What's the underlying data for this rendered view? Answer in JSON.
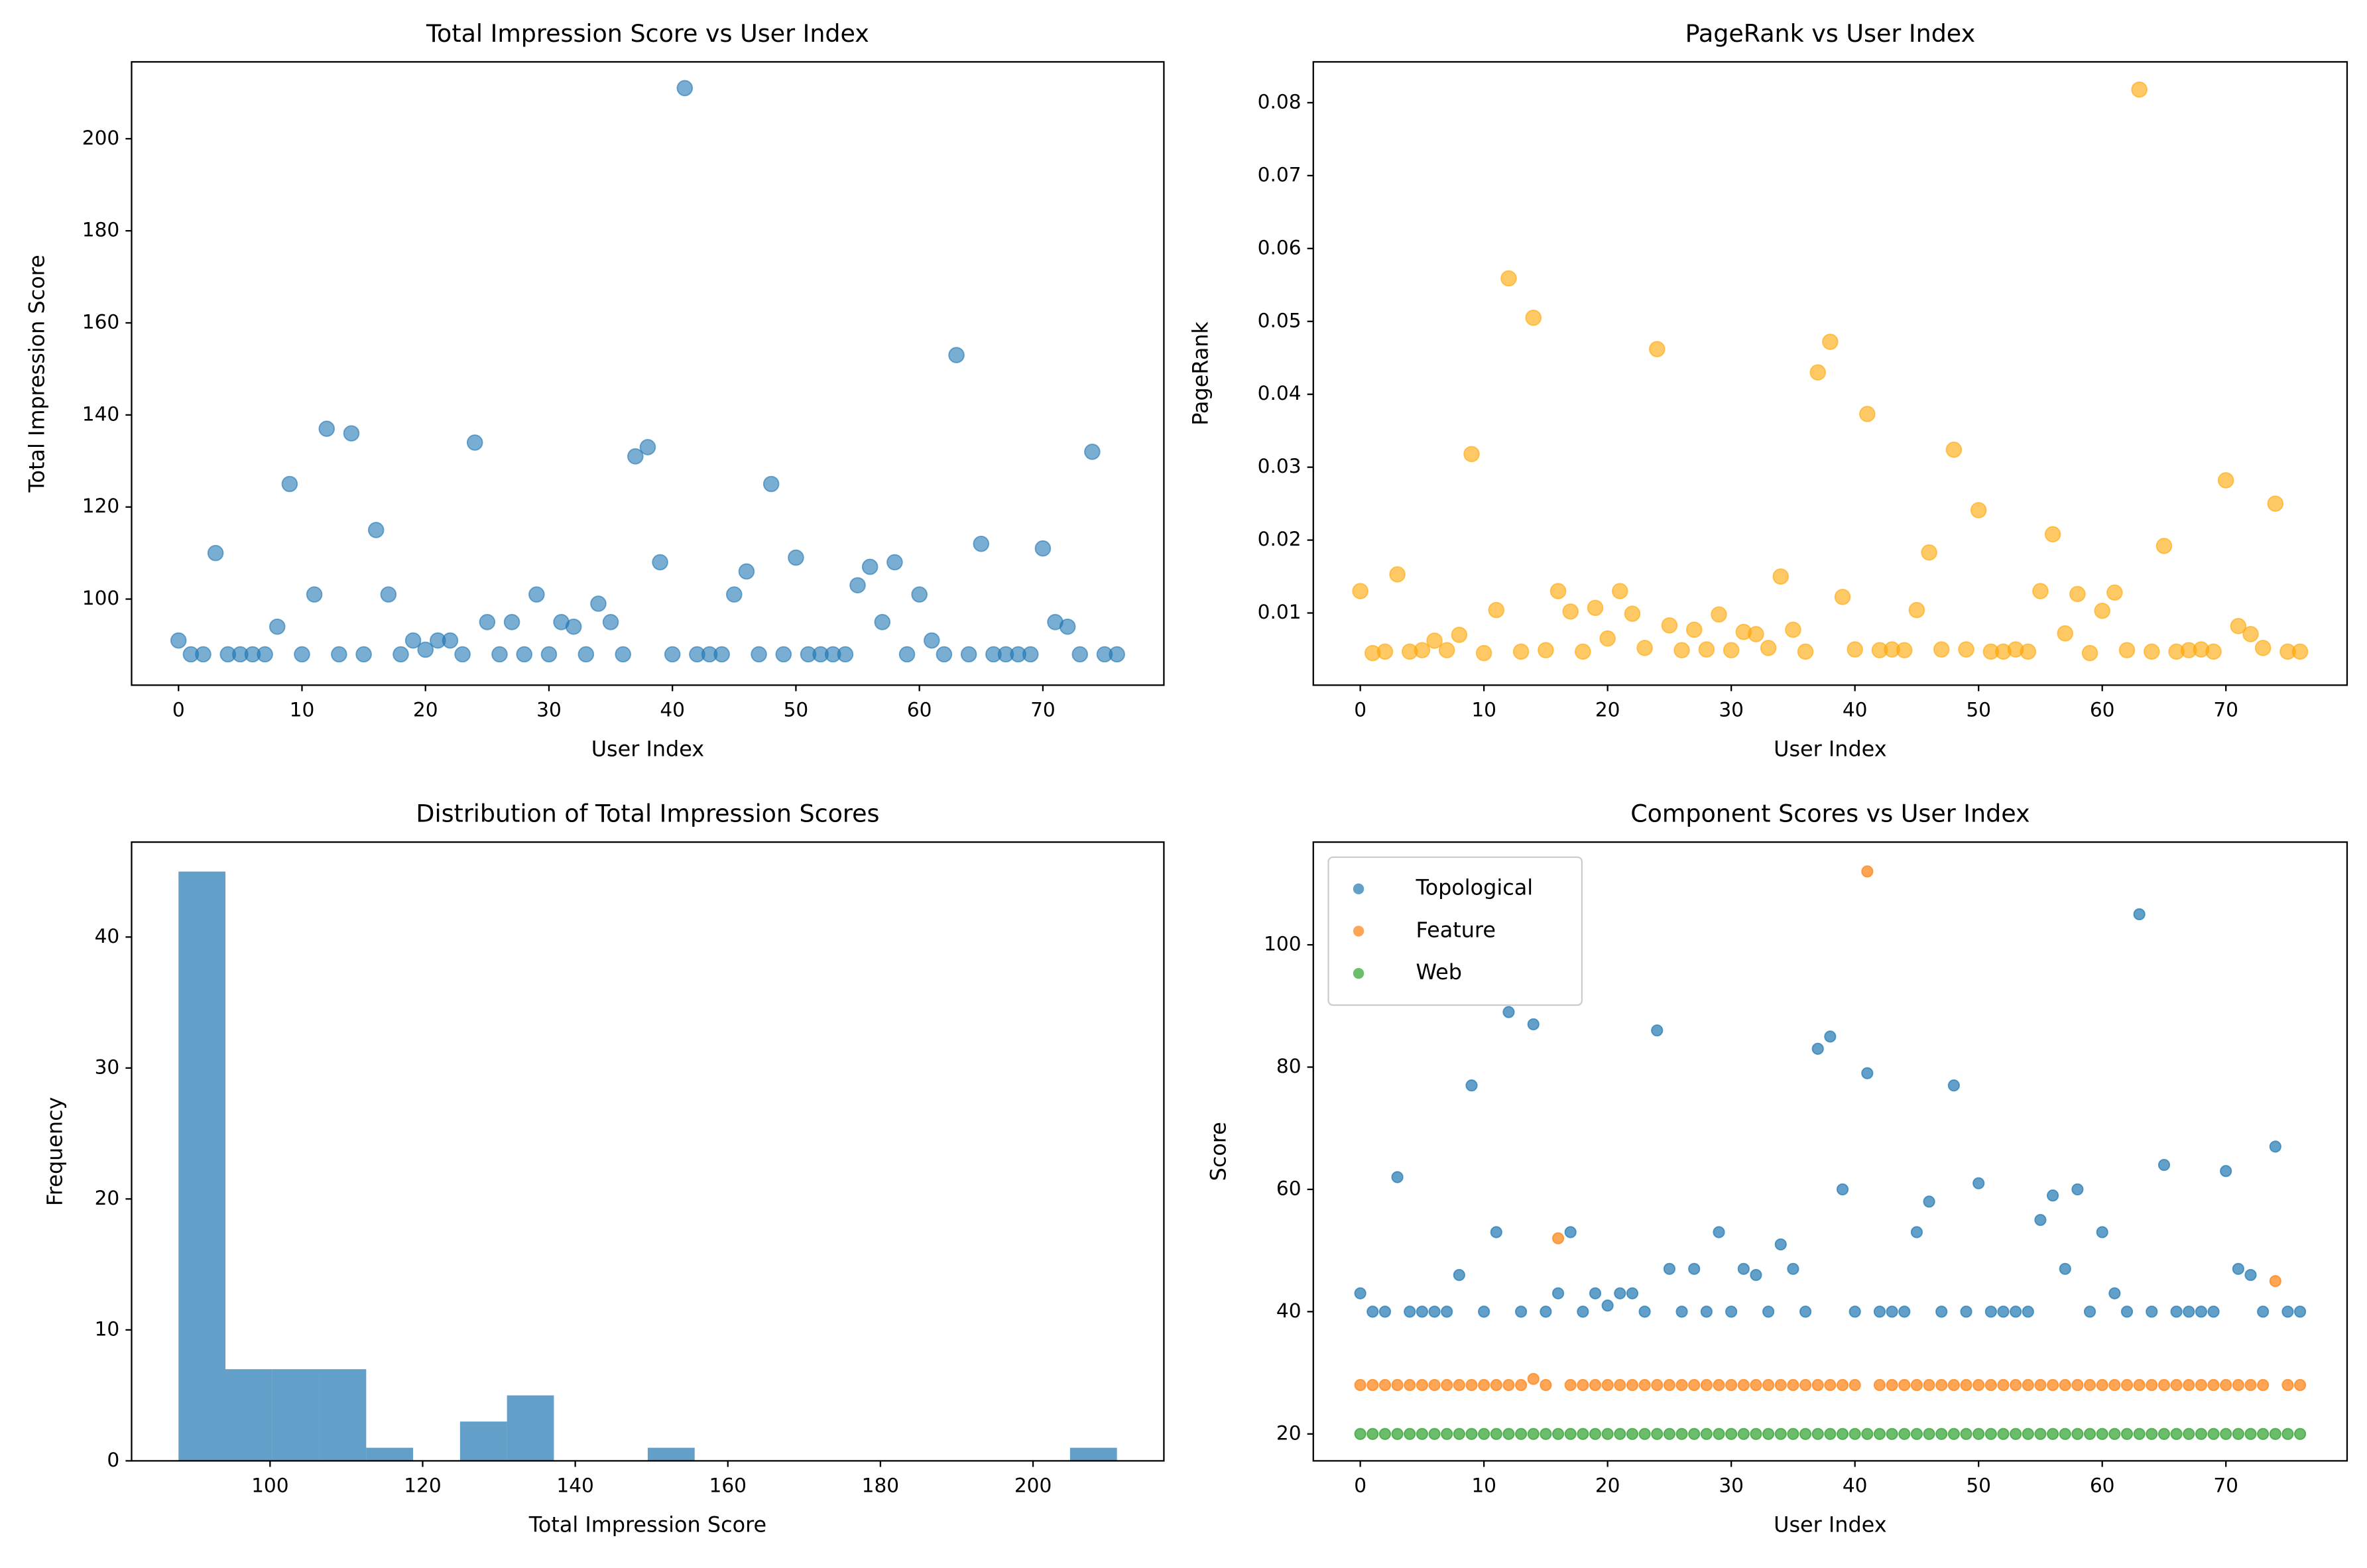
{
  "chart_data": [
    {
      "type": "scatter",
      "title": "Total Impression Score vs User Index",
      "xlabel": "User Index",
      "ylabel": "Total Impression Score",
      "xlim": [
        -3.8,
        79.8
      ],
      "ylim": [
        81.3,
        216.7
      ],
      "xticks": [
        0,
        10,
        20,
        30,
        40,
        50,
        60,
        70
      ],
      "yticks": [
        100,
        120,
        140,
        160,
        180,
        200
      ],
      "x": [
        0,
        1,
        2,
        3,
        4,
        5,
        6,
        7,
        8,
        9,
        10,
        11,
        12,
        13,
        14,
        15,
        16,
        17,
        18,
        19,
        20,
        21,
        22,
        23,
        24,
        25,
        26,
        27,
        28,
        29,
        30,
        31,
        32,
        33,
        34,
        35,
        36,
        37,
        38,
        39,
        40,
        41,
        42,
        43,
        44,
        45,
        46,
        47,
        48,
        49,
        50,
        51,
        52,
        53,
        54,
        55,
        56,
        57,
        58,
        59,
        60,
        61,
        62,
        63,
        64,
        65,
        66,
        67,
        68,
        69,
        70,
        71,
        72,
        73,
        74,
        75,
        76
      ],
      "alpha": 0.6,
      "series": [
        {
          "color": "#1f77b4",
          "values": [
            91,
            88,
            88,
            110,
            88,
            88,
            88,
            88,
            94,
            125,
            88,
            101,
            137,
            88,
            136,
            88,
            115,
            101,
            88,
            91,
            89,
            91,
            91,
            88,
            134,
            95,
            88,
            95,
            88,
            101,
            88,
            95,
            94,
            88,
            99,
            95,
            88,
            131,
            133,
            108,
            88,
            211,
            88,
            88,
            88,
            101,
            106,
            88,
            125,
            88,
            109,
            88,
            88,
            88,
            88,
            103,
            107,
            95,
            108,
            88,
            101,
            91,
            88,
            153,
            88,
            112,
            88,
            88,
            88,
            88,
            111,
            95,
            94,
            88,
            132,
            88,
            88
          ]
        }
      ]
    },
    {
      "type": "scatter",
      "title": "PageRank vs User Index",
      "xlabel": "User Index",
      "ylabel": "PageRank",
      "xlim": [
        -3.8,
        79.8
      ],
      "ylim": [
        0.0001,
        0.0856
      ],
      "xticks": [
        0,
        10,
        20,
        30,
        40,
        50,
        60,
        70
      ],
      "yticks": [
        0.01,
        0.02,
        0.03,
        0.04,
        0.05,
        0.06,
        0.07,
        0.08
      ],
      "x": [
        0,
        1,
        2,
        3,
        4,
        5,
        6,
        7,
        8,
        9,
        10,
        11,
        12,
        13,
        14,
        15,
        16,
        17,
        18,
        19,
        20,
        21,
        22,
        23,
        24,
        25,
        26,
        27,
        28,
        29,
        30,
        31,
        32,
        33,
        34,
        35,
        36,
        37,
        38,
        39,
        40,
        41,
        42,
        43,
        44,
        45,
        46,
        47,
        48,
        49,
        50,
        51,
        52,
        53,
        54,
        55,
        56,
        57,
        58,
        59,
        60,
        61,
        62,
        63,
        64,
        65,
        66,
        67,
        68,
        69,
        70,
        71,
        72,
        73,
        74,
        75,
        76
      ],
      "alpha": 0.6,
      "series": [
        {
          "color": "#ffa500",
          "values": [
            0.013,
            0.0045,
            0.0047,
            0.0153,
            0.0047,
            0.0049,
            0.0062,
            0.0049,
            0.007,
            0.0318,
            0.0045,
            0.0104,
            0.0559,
            0.0047,
            0.0505,
            0.0049,
            0.013,
            0.0102,
            0.0047,
            0.0107,
            0.0065,
            0.013,
            0.0099,
            0.0052,
            0.0462,
            0.0083,
            0.0049,
            0.0077,
            0.005,
            0.0098,
            0.0049,
            0.0074,
            0.0071,
            0.0052,
            0.015,
            0.0077,
            0.0047,
            0.043,
            0.0472,
            0.0122,
            0.005,
            0.0373,
            0.0049,
            0.005,
            0.0049,
            0.0104,
            0.0183,
            0.005,
            0.0324,
            0.005,
            0.0241,
            0.0047,
            0.0047,
            0.005,
            0.0047,
            0.013,
            0.0208,
            0.0072,
            0.0126,
            0.0045,
            0.0103,
            0.0128,
            0.0049,
            0.0818,
            0.0047,
            0.0192,
            0.0047,
            0.0049,
            0.005,
            0.0047,
            0.0282,
            0.0082,
            0.0071,
            0.0052,
            0.025,
            0.0047,
            0.0047
          ]
        }
      ]
    },
    {
      "type": "histogram",
      "title": "Distribution of Total Impression Scores",
      "xlabel": "Total Impression Score",
      "ylabel": "Frequency",
      "xlim": [
        81.85,
        217.15
      ],
      "ylim": [
        0,
        47.25
      ],
      "xticks": [
        100,
        120,
        140,
        160,
        180,
        200
      ],
      "yticks": [
        0,
        10,
        20,
        30,
        40
      ],
      "color": "#1f77b4",
      "alpha": 0.7,
      "bins": [
        88,
        94.15,
        100.3,
        106.45,
        112.6,
        118.75,
        124.9,
        131.05,
        137.2,
        143.35,
        149.5,
        155.65,
        161.8,
        167.95,
        174.1,
        180.25,
        186.4,
        192.55,
        198.7,
        204.85,
        211
      ],
      "values": [
        45,
        7,
        7,
        7,
        1,
        0,
        3,
        5,
        0,
        0,
        1,
        0,
        0,
        0,
        0,
        0,
        0,
        0,
        0,
        1
      ]
    },
    {
      "type": "scatter",
      "title": "Component Scores vs User Index",
      "xlabel": "User Index",
      "ylabel": "Score",
      "xlim": [
        -3.8,
        79.8
      ],
      "ylim": [
        15.6,
        116.8
      ],
      "xticks": [
        0,
        10,
        20,
        30,
        40,
        50,
        60,
        70
      ],
      "yticks": [
        20,
        40,
        60,
        80,
        100
      ],
      "legend": "upper left",
      "alpha": 0.7,
      "x": [
        0,
        1,
        2,
        3,
        4,
        5,
        6,
        7,
        8,
        9,
        10,
        11,
        12,
        13,
        14,
        15,
        16,
        17,
        18,
        19,
        20,
        21,
        22,
        23,
        24,
        25,
        26,
        27,
        28,
        29,
        30,
        31,
        32,
        33,
        34,
        35,
        36,
        37,
        38,
        39,
        40,
        41,
        42,
        43,
        44,
        45,
        46,
        47,
        48,
        49,
        50,
        51,
        52,
        53,
        54,
        55,
        56,
        57,
        58,
        59,
        60,
        61,
        62,
        63,
        64,
        65,
        66,
        67,
        68,
        69,
        70,
        71,
        72,
        73,
        74,
        75,
        76
      ],
      "series": [
        {
          "name": "Topological",
          "color": "#1f77b4",
          "values": [
            43,
            40,
            40,
            62,
            40,
            40,
            40,
            40,
            46,
            77,
            40,
            53,
            89,
            40,
            87,
            40,
            43,
            53,
            40,
            43,
            41,
            43,
            43,
            40,
            86,
            47,
            40,
            47,
            40,
            53,
            40,
            47,
            46,
            40,
            51,
            47,
            40,
            83,
            85,
            60,
            40,
            79,
            40,
            40,
            40,
            53,
            58,
            40,
            77,
            40,
            61,
            40,
            40,
            40,
            40,
            55,
            59,
            47,
            60,
            40,
            53,
            43,
            40,
            105,
            40,
            64,
            40,
            40,
            40,
            40,
            63,
            47,
            46,
            40,
            67,
            40,
            40
          ]
        },
        {
          "name": "Feature",
          "color": "#ff7f0e",
          "values": [
            28,
            28,
            28,
            28,
            28,
            28,
            28,
            28,
            28,
            28,
            28,
            28,
            28,
            28,
            29,
            28,
            52,
            28,
            28,
            28,
            28,
            28,
            28,
            28,
            28,
            28,
            28,
            28,
            28,
            28,
            28,
            28,
            28,
            28,
            28,
            28,
            28,
            28,
            28,
            28,
            28,
            112,
            28,
            28,
            28,
            28,
            28,
            28,
            28,
            28,
            28,
            28,
            28,
            28,
            28,
            28,
            28,
            28,
            28,
            28,
            28,
            28,
            28,
            28,
            28,
            28,
            28,
            28,
            28,
            28,
            28,
            28,
            28,
            28,
            45,
            28,
            28
          ]
        },
        {
          "name": "Web",
          "color": "#2ca02c",
          "values": [
            20,
            20,
            20,
            20,
            20,
            20,
            20,
            20,
            20,
            20,
            20,
            20,
            20,
            20,
            20,
            20,
            20,
            20,
            20,
            20,
            20,
            20,
            20,
            20,
            20,
            20,
            20,
            20,
            20,
            20,
            20,
            20,
            20,
            20,
            20,
            20,
            20,
            20,
            20,
            20,
            20,
            20,
            20,
            20,
            20,
            20,
            20,
            20,
            20,
            20,
            20,
            20,
            20,
            20,
            20,
            20,
            20,
            20,
            20,
            20,
            20,
            20,
            20,
            20,
            20,
            20,
            20,
            20,
            20,
            20,
            20,
            20,
            20,
            20,
            20,
            20,
            20
          ]
        }
      ]
    }
  ]
}
